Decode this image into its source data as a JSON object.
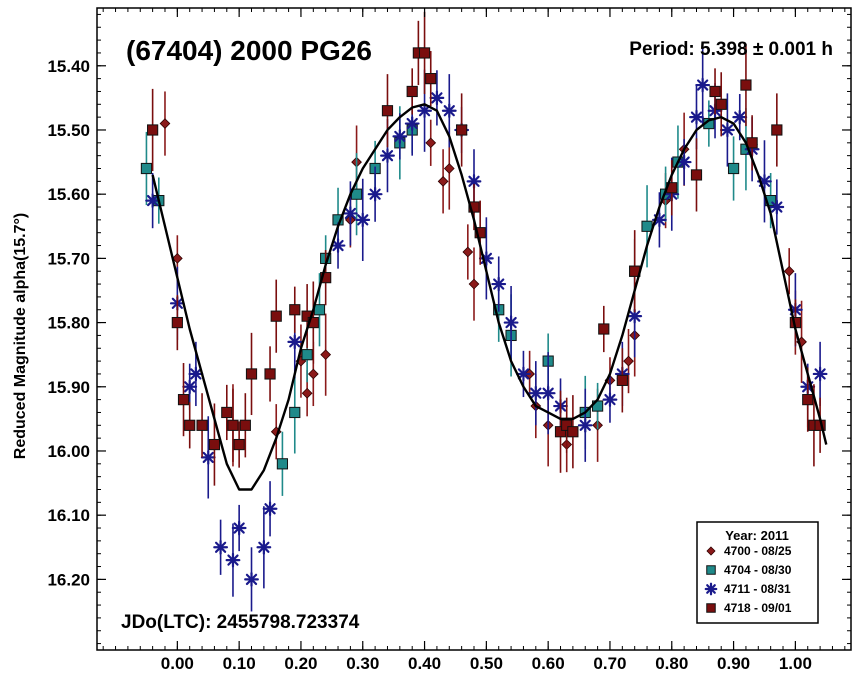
{
  "chart_data": {
    "type": "scatter",
    "title": "(67404) 2000 PG26",
    "period_label": "Period: 5.398 ± 0.001 h",
    "jdo_label": "JDo(LTC): 2455798.723374",
    "xlabel": "",
    "ylabel": "Reduced Magnitude alpha(15.7°)",
    "xlim": [
      -0.13,
      1.09
    ],
    "ylim": [
      16.31,
      15.31
    ],
    "y_inverted": true,
    "grid": false,
    "x_ticks": [
      "0.00",
      "0.10",
      "0.20",
      "0.30",
      "0.40",
      "0.50",
      "0.60",
      "0.70",
      "0.80",
      "0.90",
      "1.00"
    ],
    "y_ticks": [
      "15.40",
      "15.50",
      "15.60",
      "15.70",
      "15.80",
      "15.90",
      "16.00",
      "16.10",
      "16.20"
    ],
    "legend": {
      "title": "Year: 2011",
      "position": "bottom-right",
      "entries": [
        {
          "label": "4700 - 08/25",
          "marker": "diamond",
          "color": "#8b1a1a"
        },
        {
          "label": "4704 - 08/30",
          "marker": "square",
          "color": "#1f8a8a"
        },
        {
          "label": "4711 - 08/31",
          "marker": "star",
          "color": "#1a1a8c"
        },
        {
          "label": "4718 - 09/01",
          "marker": "square",
          "color": "#7a0e0e"
        }
      ]
    },
    "fit_curve": {
      "color": "#000000",
      "points": [
        [
          -0.04,
          15.57
        ],
        [
          -0.02,
          15.65
        ],
        [
          0.0,
          15.73
        ],
        [
          0.02,
          15.81
        ],
        [
          0.04,
          15.88
        ],
        [
          0.06,
          15.95
        ],
        [
          0.08,
          16.02
        ],
        [
          0.1,
          16.06
        ],
        [
          0.12,
          16.06
        ],
        [
          0.14,
          16.03
        ],
        [
          0.16,
          15.98
        ],
        [
          0.18,
          15.92
        ],
        [
          0.2,
          15.84
        ],
        [
          0.22,
          15.78
        ],
        [
          0.24,
          15.71
        ],
        [
          0.26,
          15.65
        ],
        [
          0.28,
          15.6
        ],
        [
          0.3,
          15.56
        ],
        [
          0.32,
          15.53
        ],
        [
          0.34,
          15.5
        ],
        [
          0.36,
          15.48
        ],
        [
          0.38,
          15.465
        ],
        [
          0.4,
          15.46
        ],
        [
          0.42,
          15.47
        ],
        [
          0.44,
          15.51
        ],
        [
          0.46,
          15.57
        ],
        [
          0.48,
          15.64
        ],
        [
          0.5,
          15.72
        ],
        [
          0.52,
          15.8
        ],
        [
          0.54,
          15.86
        ],
        [
          0.56,
          15.9
        ],
        [
          0.58,
          15.93
        ],
        [
          0.6,
          15.94
        ],
        [
          0.62,
          15.95
        ],
        [
          0.64,
          15.95
        ],
        [
          0.66,
          15.94
        ],
        [
          0.68,
          15.92
        ],
        [
          0.7,
          15.88
        ],
        [
          0.72,
          15.82
        ],
        [
          0.74,
          15.75
        ],
        [
          0.76,
          15.68
        ],
        [
          0.78,
          15.62
        ],
        [
          0.8,
          15.57
        ],
        [
          0.82,
          15.53
        ],
        [
          0.84,
          15.5
        ],
        [
          0.86,
          15.485
        ],
        [
          0.88,
          15.48
        ],
        [
          0.9,
          15.49
        ],
        [
          0.92,
          15.52
        ],
        [
          0.94,
          15.57
        ],
        [
          0.96,
          15.63
        ],
        [
          0.98,
          15.72
        ],
        [
          1.0,
          15.81
        ],
        [
          1.02,
          15.88
        ],
        [
          1.04,
          15.95
        ],
        [
          1.05,
          15.99
        ]
      ]
    },
    "series": [
      {
        "name": "4700 - 08/25",
        "marker": "diamond",
        "color": "#8b1a1a",
        "points": [
          [
            0.0,
            15.7
          ],
          [
            -0.02,
            15.49
          ],
          [
            0.09,
            15.96
          ],
          [
            0.16,
            15.97
          ],
          [
            0.2,
            15.86
          ],
          [
            0.21,
            15.91
          ],
          [
            0.22,
            15.88
          ],
          [
            0.24,
            15.85
          ],
          [
            0.28,
            15.64
          ],
          [
            0.29,
            15.55
          ],
          [
            0.41,
            15.52
          ],
          [
            0.43,
            15.58
          ],
          [
            0.44,
            15.56
          ],
          [
            0.47,
            15.69
          ],
          [
            0.48,
            15.74
          ],
          [
            0.57,
            15.88
          ],
          [
            0.58,
            15.93
          ],
          [
            0.6,
            15.96
          ],
          [
            0.63,
            15.99
          ],
          [
            0.68,
            15.96
          ],
          [
            0.7,
            15.89
          ],
          [
            0.73,
            15.86
          ],
          [
            0.74,
            15.82
          ],
          [
            0.79,
            15.61
          ],
          [
            0.82,
            15.53
          ],
          [
            0.99,
            15.72
          ],
          [
            1.0,
            15.8
          ],
          [
            1.01,
            15.83
          ],
          [
            1.02,
            15.92
          ]
        ]
      },
      {
        "name": "4704 - 08/30",
        "marker": "square",
        "color": "#1f8a8a",
        "points": [
          [
            -0.05,
            15.56
          ],
          [
            -0.03,
            15.61
          ],
          [
            0.17,
            16.02
          ],
          [
            0.19,
            15.94
          ],
          [
            0.21,
            15.85
          ],
          [
            0.23,
            15.78
          ],
          [
            0.24,
            15.7
          ],
          [
            0.26,
            15.64
          ],
          [
            0.29,
            15.6
          ],
          [
            0.32,
            15.56
          ],
          [
            0.36,
            15.52
          ],
          [
            0.38,
            15.5
          ],
          [
            0.52,
            15.78
          ],
          [
            0.54,
            15.82
          ],
          [
            0.6,
            15.86
          ],
          [
            0.66,
            15.94
          ],
          [
            0.68,
            15.93
          ],
          [
            0.74,
            15.72
          ],
          [
            0.76,
            15.65
          ],
          [
            0.79,
            15.6
          ],
          [
            0.81,
            15.55
          ],
          [
            0.86,
            15.49
          ],
          [
            0.9,
            15.56
          ],
          [
            0.92,
            15.53
          ],
          [
            0.96,
            15.61
          ]
        ]
      },
      {
        "name": "4711 - 08/31",
        "marker": "star",
        "color": "#1a1a8c",
        "points": [
          [
            -0.04,
            15.61
          ],
          [
            0.0,
            15.77
          ],
          [
            0.02,
            15.9
          ],
          [
            0.03,
            15.88
          ],
          [
            0.05,
            16.01
          ],
          [
            0.07,
            16.15
          ],
          [
            0.09,
            16.17
          ],
          [
            0.1,
            16.12
          ],
          [
            0.12,
            16.2
          ],
          [
            0.14,
            16.15
          ],
          [
            0.15,
            16.09
          ],
          [
            0.19,
            15.83
          ],
          [
            0.26,
            15.68
          ],
          [
            0.28,
            15.63
          ],
          [
            0.3,
            15.64
          ],
          [
            0.32,
            15.6
          ],
          [
            0.34,
            15.54
          ],
          [
            0.36,
            15.51
          ],
          [
            0.38,
            15.49
          ],
          [
            0.4,
            15.47
          ],
          [
            0.42,
            15.45
          ],
          [
            0.44,
            15.47
          ],
          [
            0.46,
            15.5
          ],
          [
            0.48,
            15.58
          ],
          [
            0.5,
            15.7
          ],
          [
            0.52,
            15.74
          ],
          [
            0.54,
            15.8
          ],
          [
            0.56,
            15.88
          ],
          [
            0.58,
            15.91
          ],
          [
            0.6,
            15.91
          ],
          [
            0.62,
            15.93
          ],
          [
            0.66,
            15.96
          ],
          [
            0.7,
            15.92
          ],
          [
            0.72,
            15.88
          ],
          [
            0.74,
            15.79
          ],
          [
            0.78,
            15.64
          ],
          [
            0.8,
            15.6
          ],
          [
            0.82,
            15.55
          ],
          [
            0.84,
            15.48
          ],
          [
            0.85,
            15.43
          ],
          [
            0.87,
            15.47
          ],
          [
            0.89,
            15.5
          ],
          [
            0.91,
            15.48
          ],
          [
            0.93,
            15.53
          ],
          [
            0.95,
            15.58
          ],
          [
            0.97,
            15.62
          ],
          [
            1.0,
            15.78
          ],
          [
            1.02,
            15.9
          ],
          [
            1.04,
            15.88
          ]
        ]
      },
      {
        "name": "4718 - 09/01",
        "marker": "square",
        "color": "#7a0e0e",
        "points": [
          [
            -0.04,
            15.5
          ],
          [
            0.0,
            15.8
          ],
          [
            0.01,
            15.92
          ],
          [
            0.02,
            15.96
          ],
          [
            0.04,
            15.96
          ],
          [
            0.06,
            15.99
          ],
          [
            0.08,
            15.94
          ],
          [
            0.09,
            15.96
          ],
          [
            0.1,
            15.99
          ],
          [
            0.11,
            15.96
          ],
          [
            0.12,
            15.88
          ],
          [
            0.15,
            15.88
          ],
          [
            0.16,
            15.79
          ],
          [
            0.19,
            15.78
          ],
          [
            0.21,
            15.79
          ],
          [
            0.22,
            15.8
          ],
          [
            0.24,
            15.73
          ],
          [
            0.34,
            15.47
          ],
          [
            0.38,
            15.44
          ],
          [
            0.39,
            15.38
          ],
          [
            0.4,
            15.38
          ],
          [
            0.41,
            15.42
          ],
          [
            0.46,
            15.5
          ],
          [
            0.48,
            15.62
          ],
          [
            0.49,
            15.66
          ],
          [
            0.62,
            15.97
          ],
          [
            0.63,
            15.96
          ],
          [
            0.64,
            15.97
          ],
          [
            0.69,
            15.81
          ],
          [
            0.72,
            15.89
          ],
          [
            0.74,
            15.72
          ],
          [
            0.8,
            15.59
          ],
          [
            0.84,
            15.57
          ],
          [
            0.87,
            15.44
          ],
          [
            0.88,
            15.46
          ],
          [
            0.92,
            15.43
          ],
          [
            0.93,
            15.52
          ],
          [
            0.97,
            15.5
          ],
          [
            1.0,
            15.8
          ],
          [
            1.02,
            15.92
          ],
          [
            1.03,
            15.96
          ],
          [
            1.04,
            15.96
          ]
        ]
      }
    ]
  }
}
